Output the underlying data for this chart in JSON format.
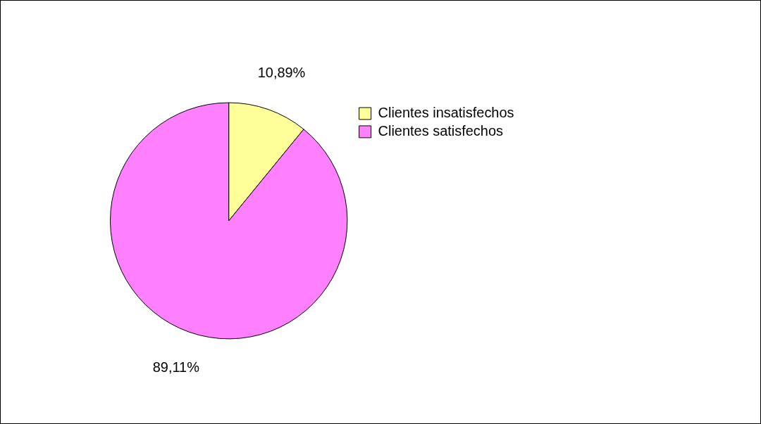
{
  "chart_data": {
    "type": "pie",
    "categories": [
      "Clientes insatisfechos",
      "Clientes satisfechos"
    ],
    "values": [
      10.89,
      89.11
    ],
    "colors": [
      "#ffff99",
      "#ff80ff"
    ],
    "value_labels": [
      "10,89%",
      "89,11%"
    ],
    "legend": "right"
  }
}
